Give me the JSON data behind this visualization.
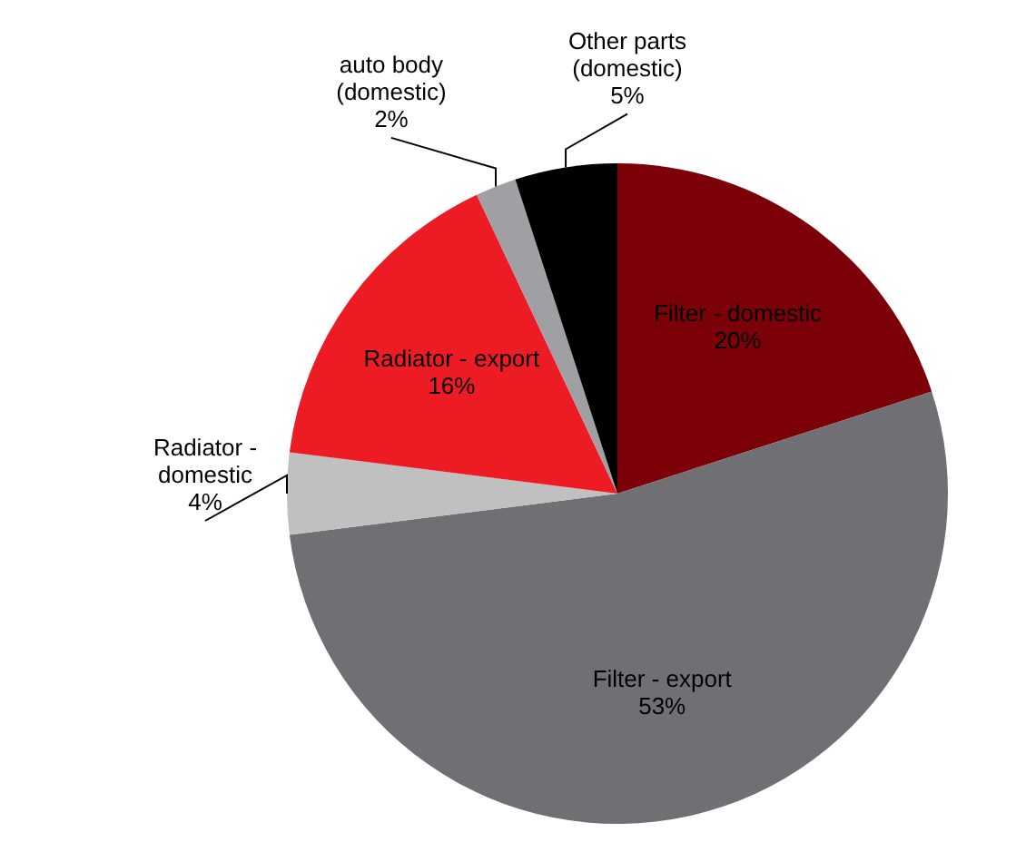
{
  "chart_data": {
    "type": "pie",
    "categories": [
      "Filter - domestic",
      "Filter - export",
      "Radiator - domestic",
      "Radiator - export",
      "auto body (domestic)",
      "Other parts (domestic)"
    ],
    "values": [
      20,
      53,
      4,
      16,
      2,
      5
    ],
    "value_labels": [
      "20%",
      "53%",
      "4%",
      "16%",
      "2%",
      "5%"
    ],
    "colors": [
      "#7b0008",
      "#707074",
      "#c0c0c0",
      "#ed1c24",
      "#a0a0a4",
      "#000000"
    ]
  }
}
